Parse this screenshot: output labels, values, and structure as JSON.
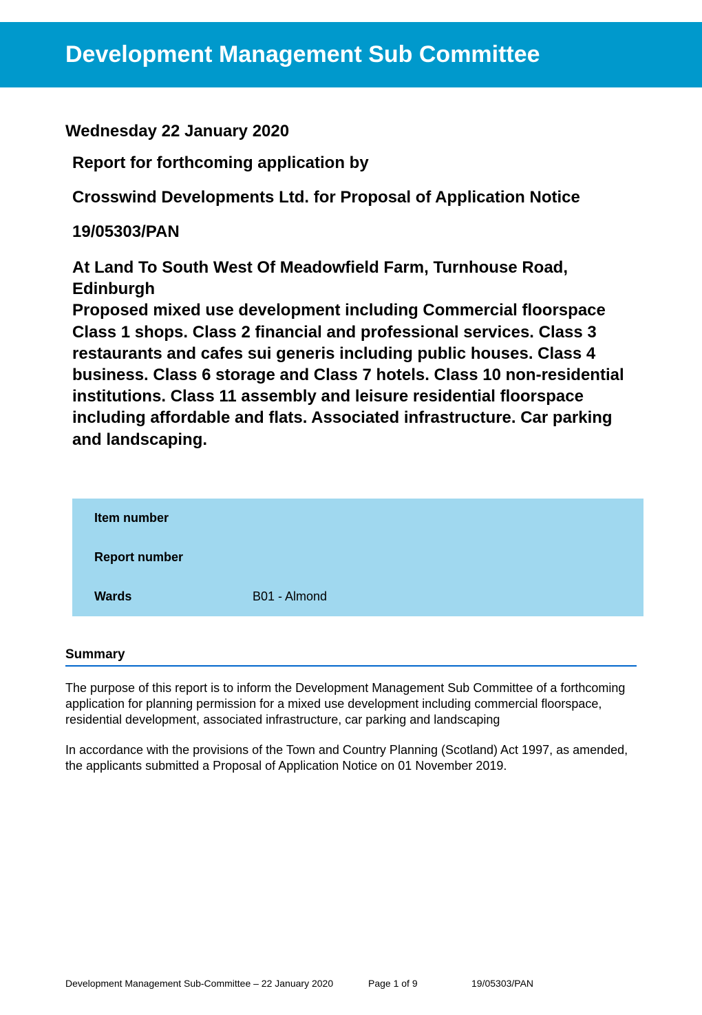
{
  "colors": {
    "banner_background": "#0099cc",
    "banner_text": "#ffffff",
    "body_text": "#000000",
    "info_table_background": "#a0d8ef",
    "summary_underline": "#0066cc",
    "page_background": "#ffffff"
  },
  "typography": {
    "banner_title_fontsize": 34,
    "heading_fontsize": 24,
    "info_label_fontsize": 18,
    "body_fontsize": 18,
    "footer_fontsize": 14,
    "font_family": "Arial"
  },
  "header": {
    "title": "Development Management Sub Committee"
  },
  "body": {
    "date": "Wednesday 22 January 2020",
    "report_for": "Report for forthcoming application by",
    "applicant": "Crosswind Developments Ltd. for Proposal of Application Notice",
    "reference": "19/05303/PAN",
    "location_and_proposal": "At Land To South West Of Meadowfield Farm, Turnhouse Road, Edinburgh\nProposed mixed use development including Commercial floorspace Class 1 shops. Class 2 financial and professional services. Class 3 restaurants and cafes sui generis including public houses. Class 4 business. Class 6 storage and Class 7 hotels. Class 10 non-residential institutions. Class 11 assembly and leisure residential floorspace including affordable and flats. Associated infrastructure. Car parking and landscaping."
  },
  "info_table": {
    "rows": [
      {
        "label": "Item number",
        "value": ""
      },
      {
        "label": "Report number",
        "value": ""
      },
      {
        "label": "Wards",
        "value": "B01 - Almond"
      }
    ]
  },
  "summary": {
    "heading": "Summary",
    "paragraph1": "The purpose of this report is to inform the Development Management Sub Committee of a forthcoming application for planning permission for a mixed use development including commercial floorspace, residential development, associated infrastructure, car parking and landscaping",
    "paragraph2": "In accordance with the provisions of the Town and Country Planning (Scotland) Act 1997, as amended, the applicants submitted a Proposal of Application Notice on 01 November 2019."
  },
  "footer": {
    "left": "Development Management Sub-Committee – 22 January 2020",
    "center": "Page 1 of 9",
    "right": "19/05303/PAN"
  }
}
